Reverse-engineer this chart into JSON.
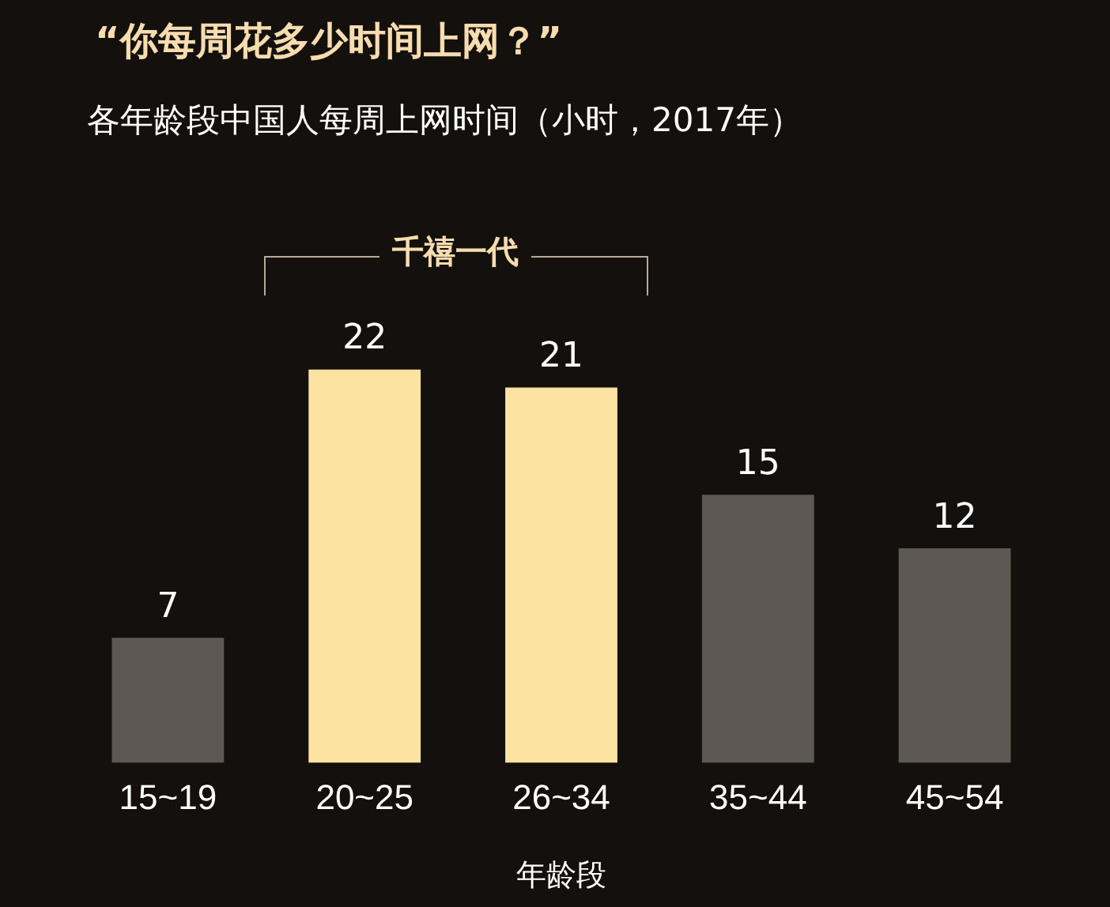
{
  "chart_data": {
    "type": "bar",
    "title": "“你每周花多少时间上网？”",
    "subtitle": "各年龄段中国人每周上网时间（小时，2017年）",
    "xlabel": "年龄段",
    "categories": [
      "15~19",
      "20~25",
      "26~34",
      "35~44",
      "45~54"
    ],
    "values": [
      7,
      22,
      21,
      15,
      12
    ],
    "colors": [
      "#5e5852",
      "#fde3a2",
      "#fde3a2",
      "#5e5852",
      "#5e5852"
    ],
    "data_labels": true,
    "annotations": [
      "千禧一代"
    ]
  }
}
